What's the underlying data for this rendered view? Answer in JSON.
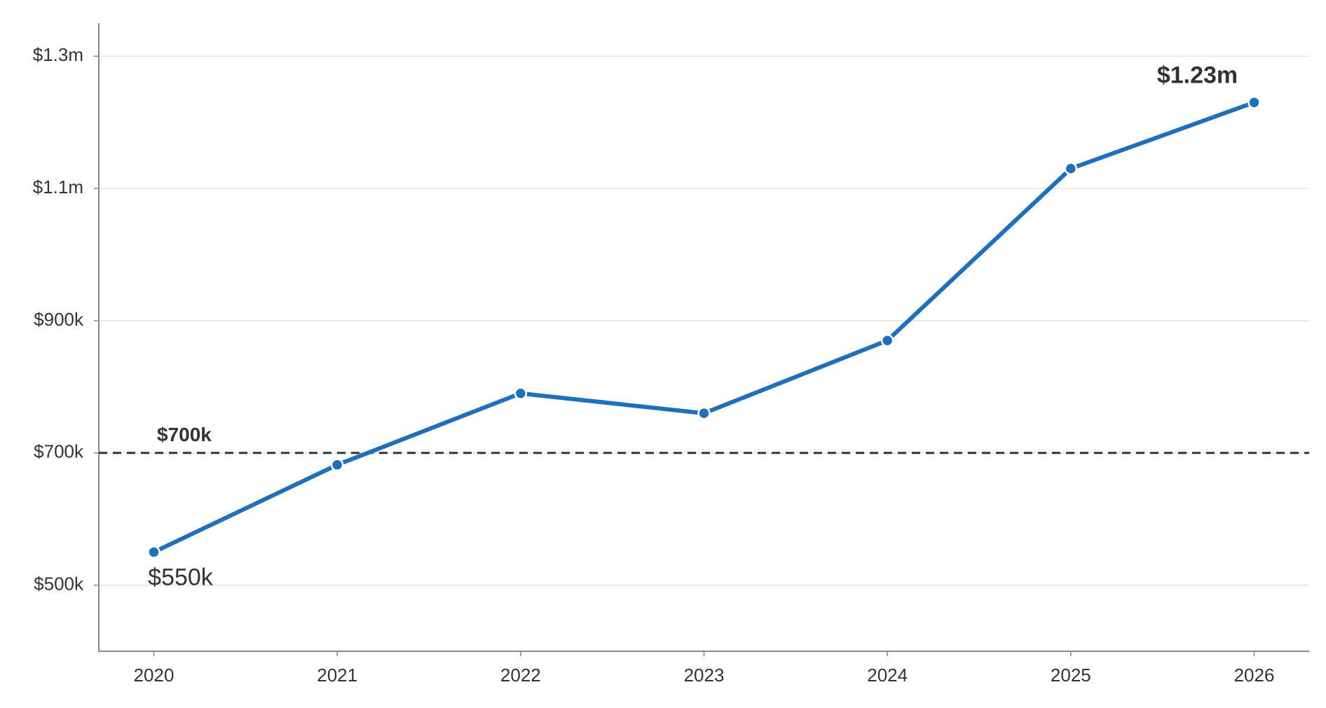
{
  "chart_data": {
    "type": "line",
    "x": [
      2020,
      2021,
      2022,
      2023,
      2024,
      2025,
      2026
    ],
    "values": [
      550000,
      682000,
      790000,
      760000,
      870000,
      1130000,
      1230000
    ],
    "value_labels": [
      "$550k",
      null,
      null,
      null,
      null,
      null,
      "$1.23m"
    ],
    "color": "#1f6fbb",
    "xlim": [
      2019.7,
      2026.3
    ],
    "xticks": [
      2020,
      2021,
      2022,
      2023,
      2024,
      2025,
      2026
    ],
    "ylim": [
      400000,
      1350000
    ],
    "yticks": [
      {
        "value": 500000,
        "label": "$500k"
      },
      {
        "value": 700000,
        "label": "$700k"
      },
      {
        "value": 900000,
        "label": "$900k"
      },
      {
        "value": 1100000,
        "label": "$1.1m"
      },
      {
        "value": 1300000,
        "label": "$1.3m"
      }
    ],
    "grid": true,
    "reference_line": {
      "value": 700000,
      "label": "$700k",
      "style": "dashed",
      "color": "#333333"
    }
  }
}
